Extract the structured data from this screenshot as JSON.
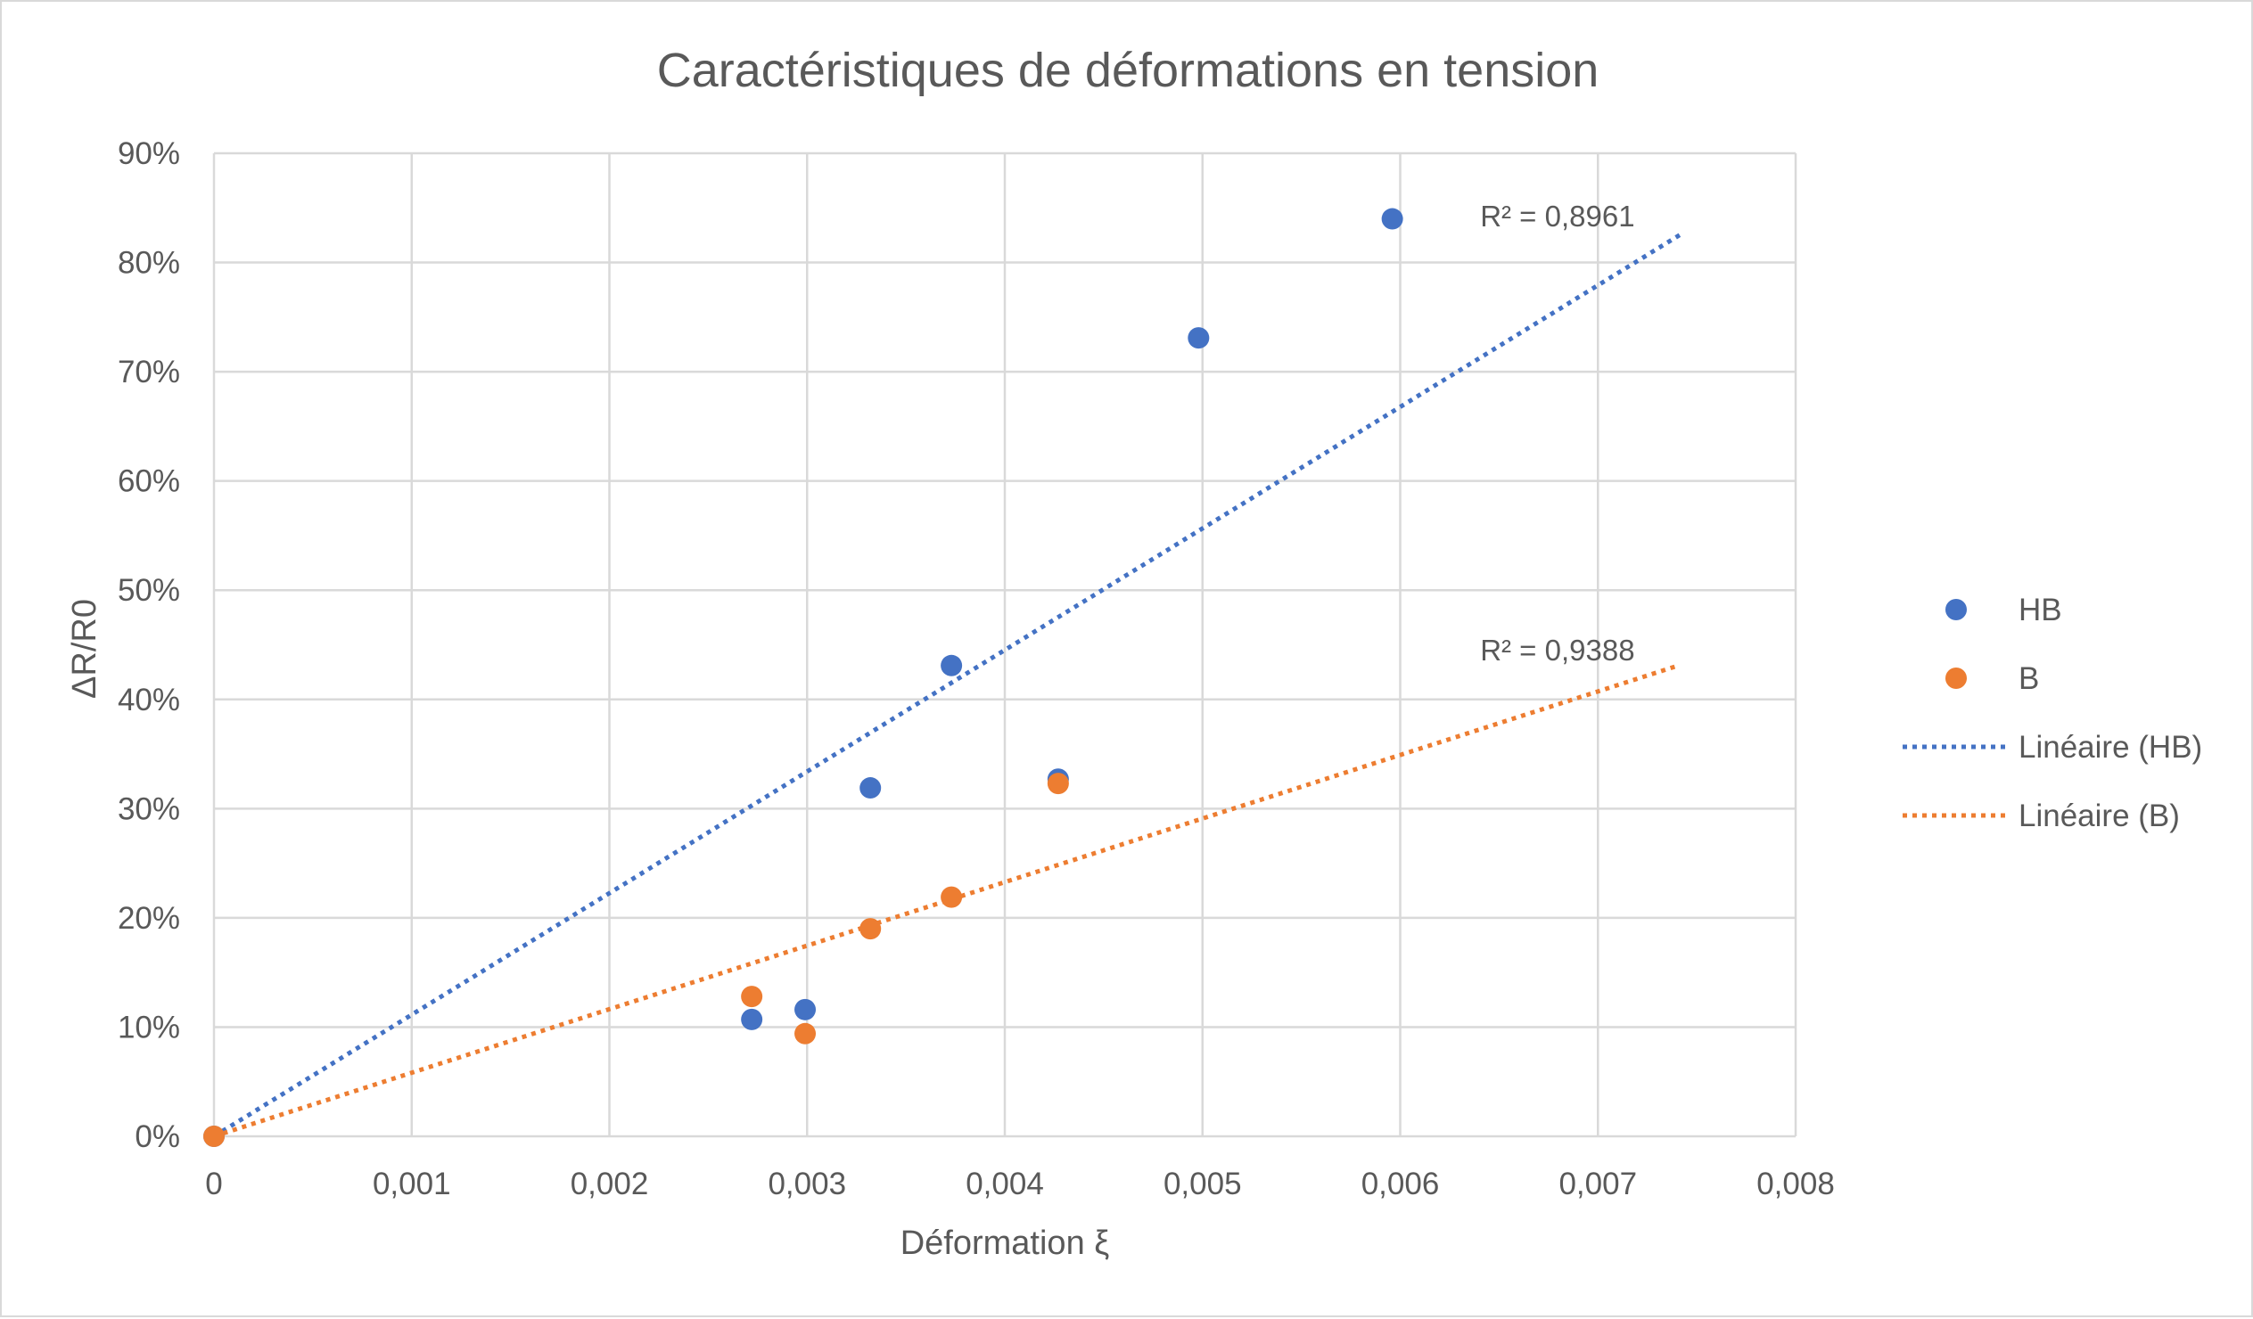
{
  "chart_data": {
    "type": "scatter",
    "title": "Caractéristiques de déformations en tension",
    "xlabel": "Déformation ξ",
    "ylabel": "ΔR/R0",
    "xlim": [
      0,
      0.008
    ],
    "ylim": [
      0,
      0.9
    ],
    "x_ticks": [
      0,
      0.001,
      0.002,
      0.003,
      0.004,
      0.005,
      0.006,
      0.007,
      0.008
    ],
    "x_tick_labels": [
      "0",
      "0,001",
      "0,002",
      "0,003",
      "0,004",
      "0,005",
      "0,006",
      "0,007",
      "0,008"
    ],
    "y_ticks": [
      0,
      0.1,
      0.2,
      0.3,
      0.4,
      0.5,
      0.6,
      0.7,
      0.8,
      0.9
    ],
    "y_tick_labels": [
      "0%",
      "10%",
      "20%",
      "30%",
      "40%",
      "50%",
      "60%",
      "70%",
      "80%",
      "90%"
    ],
    "grid": true,
    "legend_position": "right",
    "series": [
      {
        "name": "HB",
        "color": "#4472C4",
        "points": [
          {
            "x": 0,
            "y": 0
          },
          {
            "x": 0.00272,
            "y": 0.107
          },
          {
            "x": 0.00299,
            "y": 0.116
          },
          {
            "x": 0.00332,
            "y": 0.319
          },
          {
            "x": 0.00373,
            "y": 0.431
          },
          {
            "x": 0.00427,
            "y": 0.327
          },
          {
            "x": 0.00498,
            "y": 0.731
          },
          {
            "x": 0.00596,
            "y": 0.84
          }
        ]
      },
      {
        "name": "B",
        "color": "#ED7D31",
        "points": [
          {
            "x": 0,
            "y": 0
          },
          {
            "x": 0.00272,
            "y": 0.128
          },
          {
            "x": 0.00299,
            "y": 0.094
          },
          {
            "x": 0.00332,
            "y": 0.19
          },
          {
            "x": 0.00373,
            "y": 0.219
          },
          {
            "x": 0.00427,
            "y": 0.323
          }
        ]
      }
    ],
    "trendlines": [
      {
        "name": "Linéaire (HB)",
        "series": "HB",
        "color": "#4472C4",
        "x_range": [
          0,
          0.00743
        ],
        "y_range": [
          0,
          0.827
        ],
        "r2_label": "R² = 0,8961",
        "r2_anchor": {
          "x": 0.0064,
          "y": 0.828
        }
      },
      {
        "name": "Linéaire (B)",
        "series": "B",
        "color": "#ED7D31",
        "x_range": [
          0,
          0.00739
        ],
        "y_range": [
          0,
          0.43
        ],
        "r2_label": "R² = 0,9388",
        "r2_anchor": {
          "x": 0.0064,
          "y": 0.431
        }
      }
    ],
    "legend": [
      {
        "label": "HB",
        "kind": "marker",
        "color": "#4472C4"
      },
      {
        "label": "B",
        "kind": "marker",
        "color": "#ED7D31"
      },
      {
        "label": "Linéaire (HB)",
        "kind": "dotted-line",
        "color": "#4472C4"
      },
      {
        "label": "Linéaire (B)",
        "kind": "dotted-line",
        "color": "#ED7D31"
      }
    ]
  }
}
